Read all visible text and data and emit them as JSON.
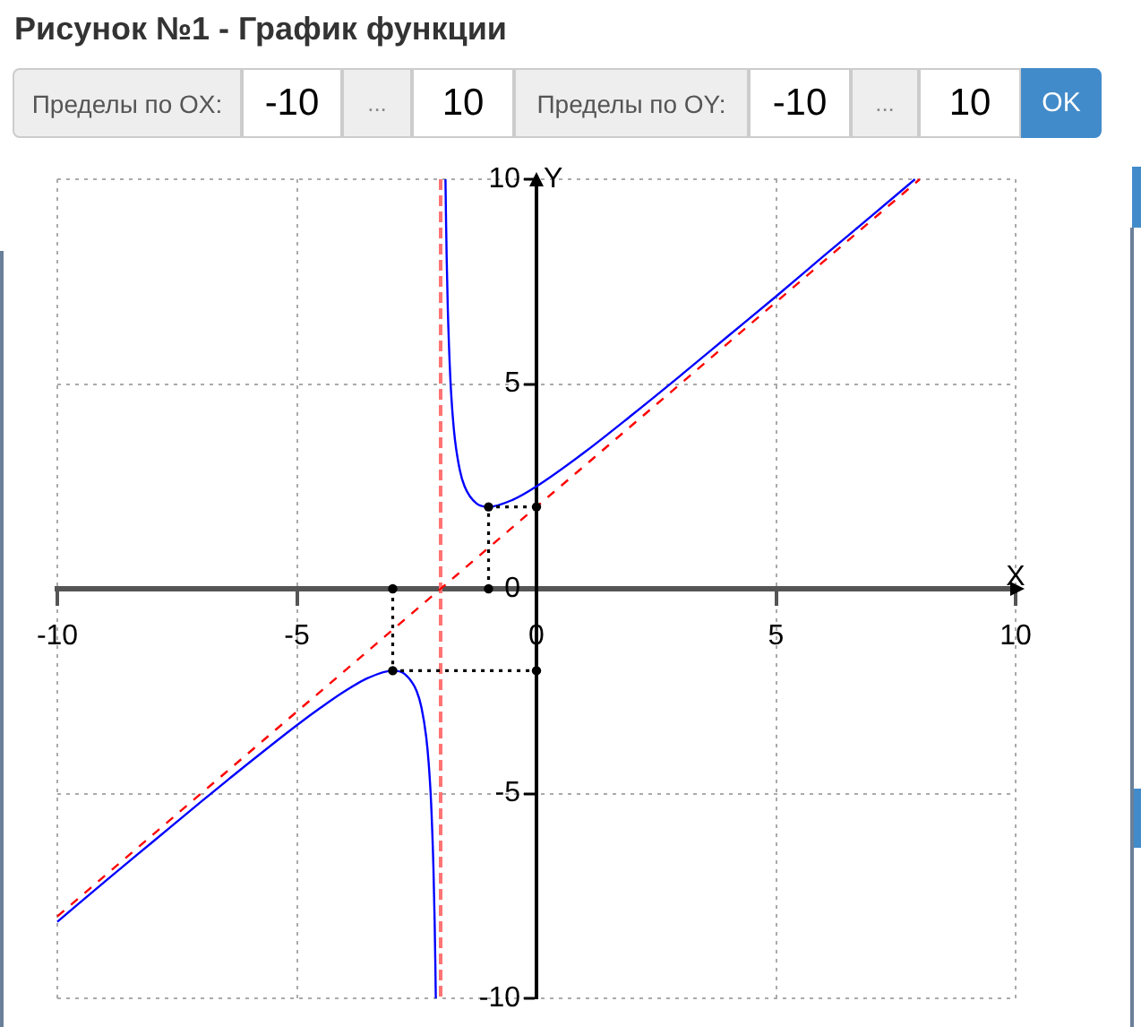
{
  "chart_data": {
    "type": "line",
    "title": "Рисунок №1 - График функции",
    "xlabel": "X",
    "ylabel": "Y",
    "xlim": [
      -10,
      10
    ],
    "ylim": [
      -10,
      10
    ],
    "xticks": [
      -10,
      -5,
      0,
      5,
      10
    ],
    "yticks": [
      -10,
      -5,
      0,
      5,
      10
    ],
    "grid": true,
    "series": [
      {
        "type": "line",
        "color": "#0000ff",
        "marker": "none",
        "line_style": "solid",
        "x": [
          -10,
          -9,
          -8,
          -7,
          -6,
          -5,
          -4.5,
          -4,
          -3.5,
          -3,
          -2.75,
          -2.5,
          -2.4,
          -2.3,
          -2.25,
          -2.2,
          -2.15,
          -2.125,
          -2.11,
          -2.101,
          -2,
          -1.899,
          -1.89,
          -1.875,
          -1.85,
          -1.8,
          -1.75,
          -1.7,
          -1.6,
          -1.5,
          -1.25,
          -1,
          -0.5,
          0,
          1,
          2,
          3,
          4,
          5,
          6,
          7,
          7.9
        ],
        "values": [
          -8.13,
          -7.14,
          -6.17,
          -5.2,
          -4.25,
          -3.33,
          -2.9,
          -2.5,
          -2.17,
          -2,
          -2.08,
          -2.5,
          -2.9,
          -3.63,
          -4.25,
          -5.2,
          -6.82,
          -8.13,
          -9.2,
          -10,
          null,
          10,
          9.2,
          8.13,
          6.82,
          5.2,
          4.25,
          3.63,
          2.9,
          2.5,
          2.08,
          2,
          2.17,
          2.5,
          3.33,
          4.25,
          5.2,
          6.17,
          7.14,
          8.13,
          9.11,
          10
        ]
      },
      {
        "type": "line",
        "color": "#ff0000",
        "marker": "none",
        "line_style": "dashed",
        "x": [
          -10,
          8
        ],
        "values": [
          -8,
          10
        ]
      },
      {
        "type": "line",
        "color": "#000000",
        "marker": "circle",
        "line_style": "dotted",
        "x": [
          -1,
          -1,
          0
        ],
        "values": [
          0,
          2,
          2
        ]
      },
      {
        "type": "line",
        "color": "#000000",
        "marker": "circle",
        "line_style": "dotted",
        "x": [
          -3,
          -3,
          0
        ],
        "values": [
          0,
          -2,
          -2
        ]
      }
    ],
    "ref_lines": [
      {
        "axis": "x",
        "value": -2,
        "color": "#ff7373",
        "line_style": "dashed"
      }
    ],
    "annotations": [
      "Пределы по ОX:",
      "-10",
      "...",
      "10",
      "Пределы по ОY:",
      "-10",
      "...",
      "10",
      "OK"
    ]
  }
}
